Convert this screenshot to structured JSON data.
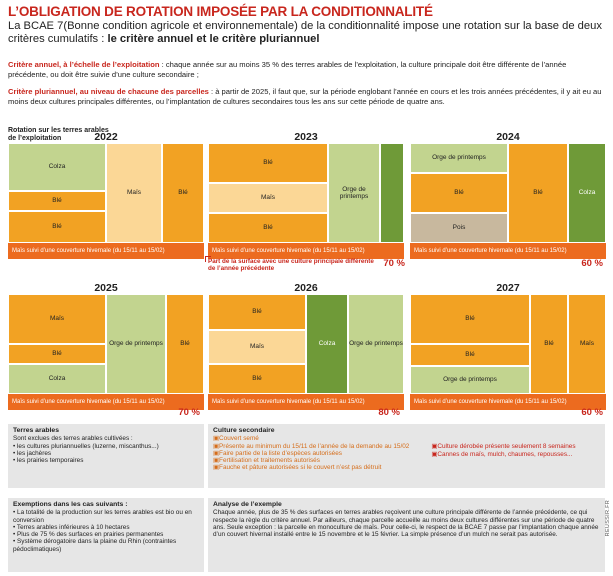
{
  "title": "L’OBLIGATION DE ROTATION IMPOSÉE PAR LA CONDITIONNALITÉ",
  "intro": {
    "text": "La BCAE 7(Bonne condition agricole et environnementale) de la conditionnalité impose une rotation sur la base de deux critères cumulatifs : ",
    "bold": "le critère annuel et le critère pluriannuel"
  },
  "criteria": {
    "annual_label": "Critère annuel, à l’échelle de l’exploitation",
    "annual_text": " : chaque année sur au moins 35 % des terres arables de l’exploitation, la culture principale doit être différente de l’année précédente, ou doit être suivie d’une culture secondaire ;",
    "multi_label": "Critère pluriannuel, au niveau de chacune des parcelles",
    "multi_text": " : à partir de 2025, il faut que, sur la période englobant l’année en cours et les trois années précédentes, il y ait eu au moins deux cultures principales différentes, ou l’implantation de cultures secondaires tous les ans sur cette période de quatre ans."
  },
  "rotation_label": "Rotation sur les terres arables de l’exploitation",
  "band_text": "Maïs suivi d’une couverture hivernale (du 15/11 au 15/02)",
  "note_text": "Part de la surface avec une culture principale différente de l’année précédente",
  "years": [
    {
      "year": "2022",
      "pct": "",
      "cells": [
        {
          "label": "Colza",
          "color": "lg"
        },
        {
          "label": "Blé",
          "color": "o"
        },
        {
          "label": "Blé",
          "color": "o"
        },
        {
          "label": "Maïs",
          "color": "ly"
        },
        {
          "label": "Blé",
          "color": "o"
        }
      ]
    },
    {
      "year": "2023",
      "pct": "70 %",
      "cells": [
        {
          "label": "Blé",
          "color": "o"
        },
        {
          "label": "Maïs",
          "color": "ly"
        },
        {
          "label": "Blé",
          "color": "o"
        },
        {
          "label": "Orge de printemps",
          "color": "lg"
        },
        {
          "label": "",
          "color": "dg"
        }
      ]
    },
    {
      "year": "2024",
      "pct": "60 %",
      "cells": [
        {
          "label": "Orge de printemps",
          "color": "lg"
        },
        {
          "label": "Blé",
          "color": "o"
        },
        {
          "label": "Pois",
          "color": "tan"
        },
        {
          "label": "Blé",
          "color": "o"
        },
        {
          "label": "Colza",
          "color": "dg"
        }
      ]
    },
    {
      "year": "2025",
      "pct": "70 %",
      "cells": [
        {
          "label": "Maïs",
          "color": "o"
        },
        {
          "label": "Blé",
          "color": "o"
        },
        {
          "label": "Colza",
          "color": "lg"
        },
        {
          "label": "Orge de printemps",
          "color": "lg"
        },
        {
          "label": "Blé",
          "color": "o"
        }
      ]
    },
    {
      "year": "2026",
      "pct": "80 %",
      "cells": [
        {
          "label": "Blé",
          "color": "o"
        },
        {
          "label": "Maïs",
          "color": "ly"
        },
        {
          "label": "Blé",
          "color": "o"
        },
        {
          "label": "Colza",
          "color": "dg"
        },
        {
          "label": "Orge de printemps",
          "color": "lg"
        }
      ]
    },
    {
      "year": "2027",
      "pct": "60 %",
      "cells": [
        {
          "label": "Blé",
          "color": "o"
        },
        {
          "label": "Blé",
          "color": "o"
        },
        {
          "label": "Orge de printemps",
          "color": "lg"
        },
        {
          "label": "Blé",
          "color": "o"
        },
        {
          "label": "Maïs",
          "color": "o"
        }
      ]
    }
  ],
  "terres_arables": {
    "title": "Terres arables",
    "subtitle": "Sont exclues des terres arables cultivées :",
    "items": [
      "les cultures pluriannuelles (luzerne, miscanthus...)",
      "les jachères",
      "les prairies temporaires"
    ]
  },
  "culture_secondaire": {
    "title": "Culture secondaire",
    "items_left": [
      "Couvert semé",
      "Présente au minimum du 15/11 de l’année de la demande au 15/02",
      "Faire partie de la liste d’espèces autorisées",
      "Fertilisation et traitements autorisés",
      "Fauche et pâture autorisées si le couvert n’est pas détruit"
    ],
    "items_right": [
      "Culture dérobée présente seulement 8 semaines",
      "Cannes de maïs, mulch, chaumes, repousses..."
    ]
  },
  "exemptions": {
    "title": "Exemptions dans les cas suivants :",
    "items": [
      "La totalité de la production sur les terres arables est bio ou en conversion",
      "Terres arables inférieures à 10 hectares",
      "Plus de 75 % des surfaces en prairies permanentes",
      "Système dérogatoire dans la plaine du Rhin (contraintes pédoclimatiques)"
    ]
  },
  "analyse": {
    "title": "Analyse de l’exemple",
    "text": "Chaque année, plus de 35 % des surfaces en terres arables reçoivent une culture principale différente de l’année précédente, ce qui respecte la règle du critère annuel. Par ailleurs, chaque parcelle accueille au moins deux cultures différentes sur une période de quatre ans. Seule exception : la parcelle en monoculture de maïs. Pour celle-ci, le respect de la BCAE 7 passe par l’implantation chaque année d’un couvert hivernal installé entre le 15 novembre et le 15 février. La simple présence d’un mulch ne serait pas autorisée."
  },
  "credit": "REUSSIR.FR",
  "colors": {
    "orange": "#f2a223",
    "light_yellow": "#fbd796",
    "light_green": "#c2d48f",
    "dark_green": "#6f9a38",
    "tan": "#c8b89e",
    "band": "#ec6b1f",
    "red": "#c8261d"
  }
}
